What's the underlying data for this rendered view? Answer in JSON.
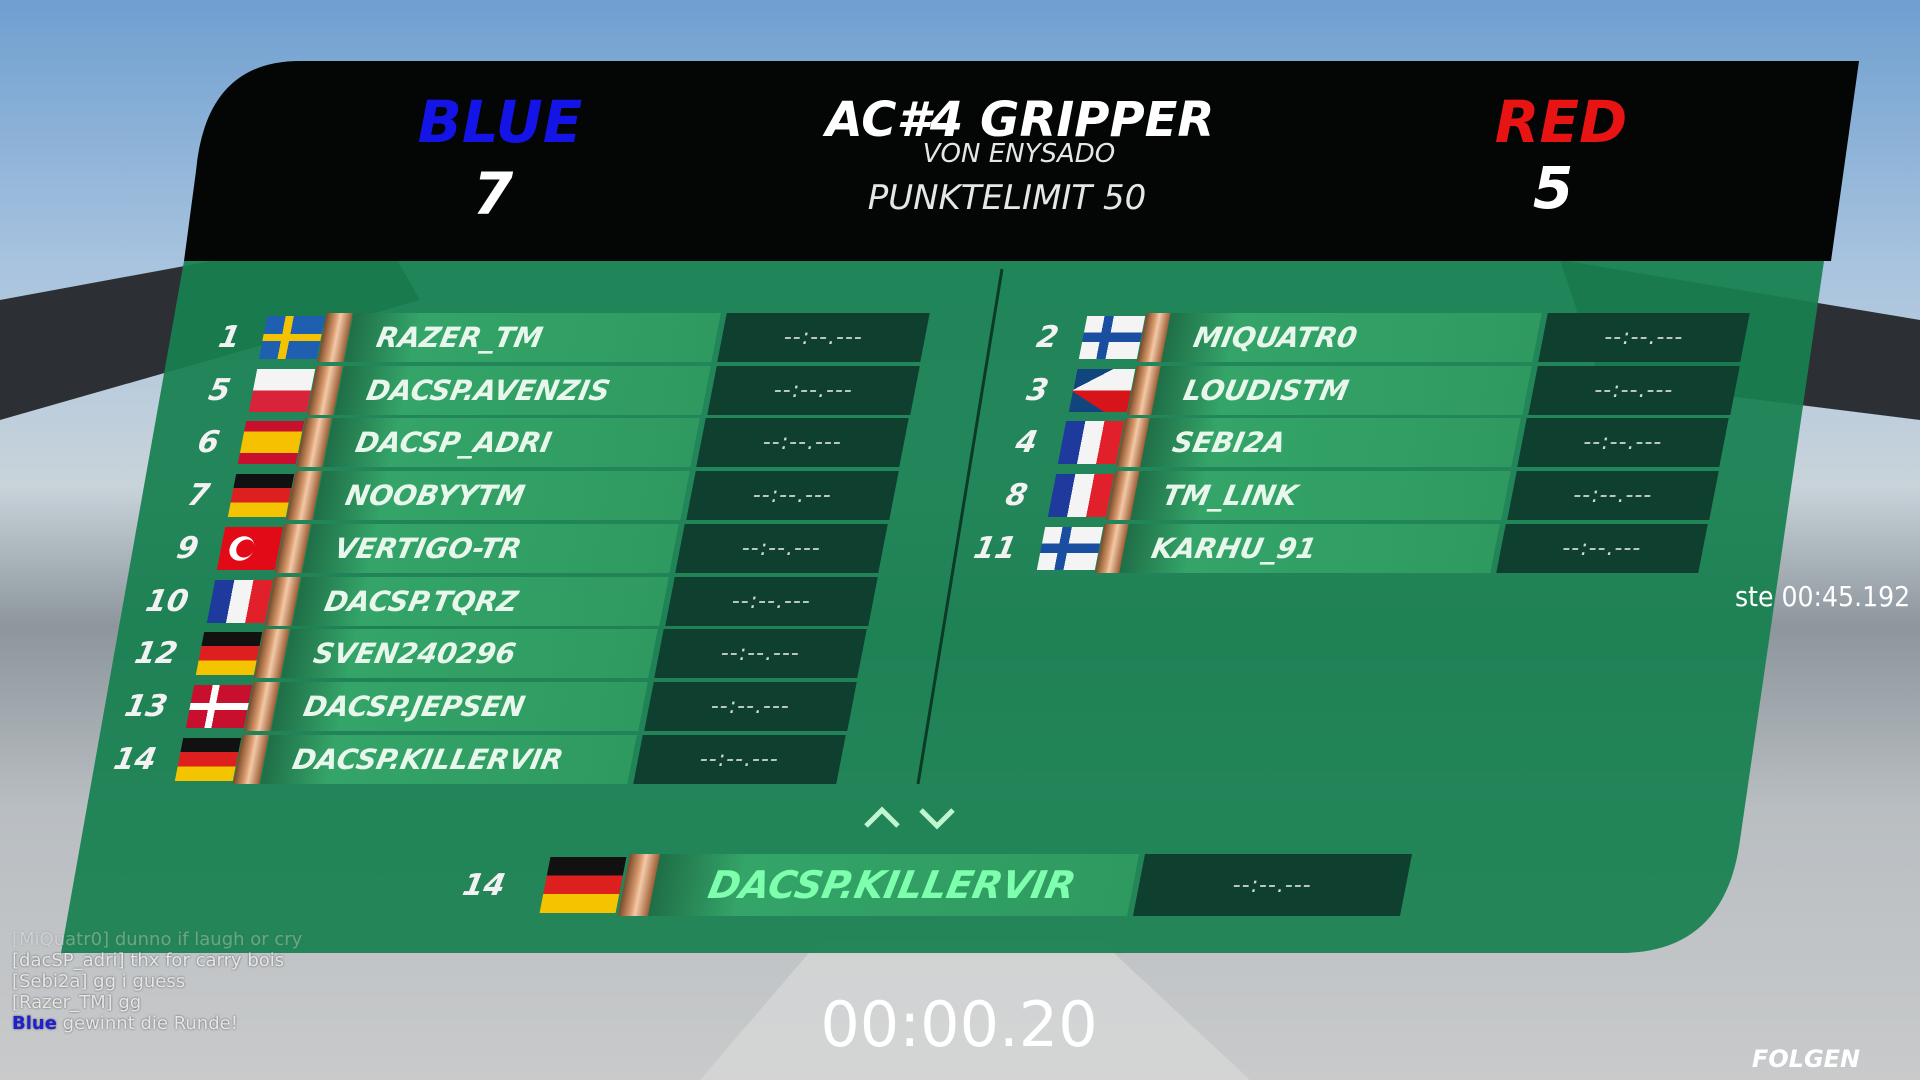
{
  "header": {
    "blue_team": "BLUE",
    "blue_score": 7,
    "map": "AC#4 GRIPPER",
    "author": "VON ENYSADO",
    "point_limit": "PUNKTELIMIT 50",
    "red_team": "RED",
    "red_score": 5
  },
  "blue_players": [
    {
      "rank": 1,
      "name": "RAZER_TM",
      "time": "--:--.---"
    },
    {
      "rank": 5,
      "name": "DACSP.AVENZIS",
      "time": "--:--.---"
    },
    {
      "rank": 6,
      "name": "DACSP_ADRI",
      "time": "--:--.---"
    },
    {
      "rank": 7,
      "name": "NOOBYYTM",
      "time": "--:--.---"
    },
    {
      "rank": 9,
      "name": "VERTIGO-TR",
      "time": "--:--.---"
    },
    {
      "rank": 10,
      "name": "DACSP.TQRZ",
      "time": "--:--.---"
    },
    {
      "rank": 12,
      "name": "SVEN240296",
      "time": "--:--.---"
    },
    {
      "rank": 13,
      "name": "DACSP.JEPSEN",
      "time": "--:--.---"
    },
    {
      "rank": 14,
      "name": "DACSP.KILLERVIR",
      "time": "--:--.---"
    }
  ],
  "red_players": [
    {
      "rank": 2,
      "name": "MIQUATR0",
      "time": "--:--.---"
    },
    {
      "rank": 3,
      "name": "LOUDISTM",
      "time": "--:--.---"
    },
    {
      "rank": 4,
      "name": "SEBI2A",
      "time": "--:--.---"
    },
    {
      "rank": 8,
      "name": "TM_LINK",
      "time": "--:--.---"
    },
    {
      "rank": 11,
      "name": "KARHU_91",
      "time": "--:--.---"
    }
  ],
  "current_player": {
    "rank": 14,
    "name": "DACSP.KILLERVIR",
    "time": "--:--.---"
  },
  "chat": [
    "[MiQuatr0] dunno if laugh or cry",
    "[dacSP_adri] thx for carry bois",
    "[Sebi2a] gg i guess",
    "[Razer_TM] gg"
  ],
  "chat_result": {
    "team": "Blue",
    "text": "gewinnt die Runde!"
  },
  "best": {
    "label": "ste",
    "time": "00:45.192"
  },
  "timer": "00:00.20",
  "follow": "FOLGEN"
}
